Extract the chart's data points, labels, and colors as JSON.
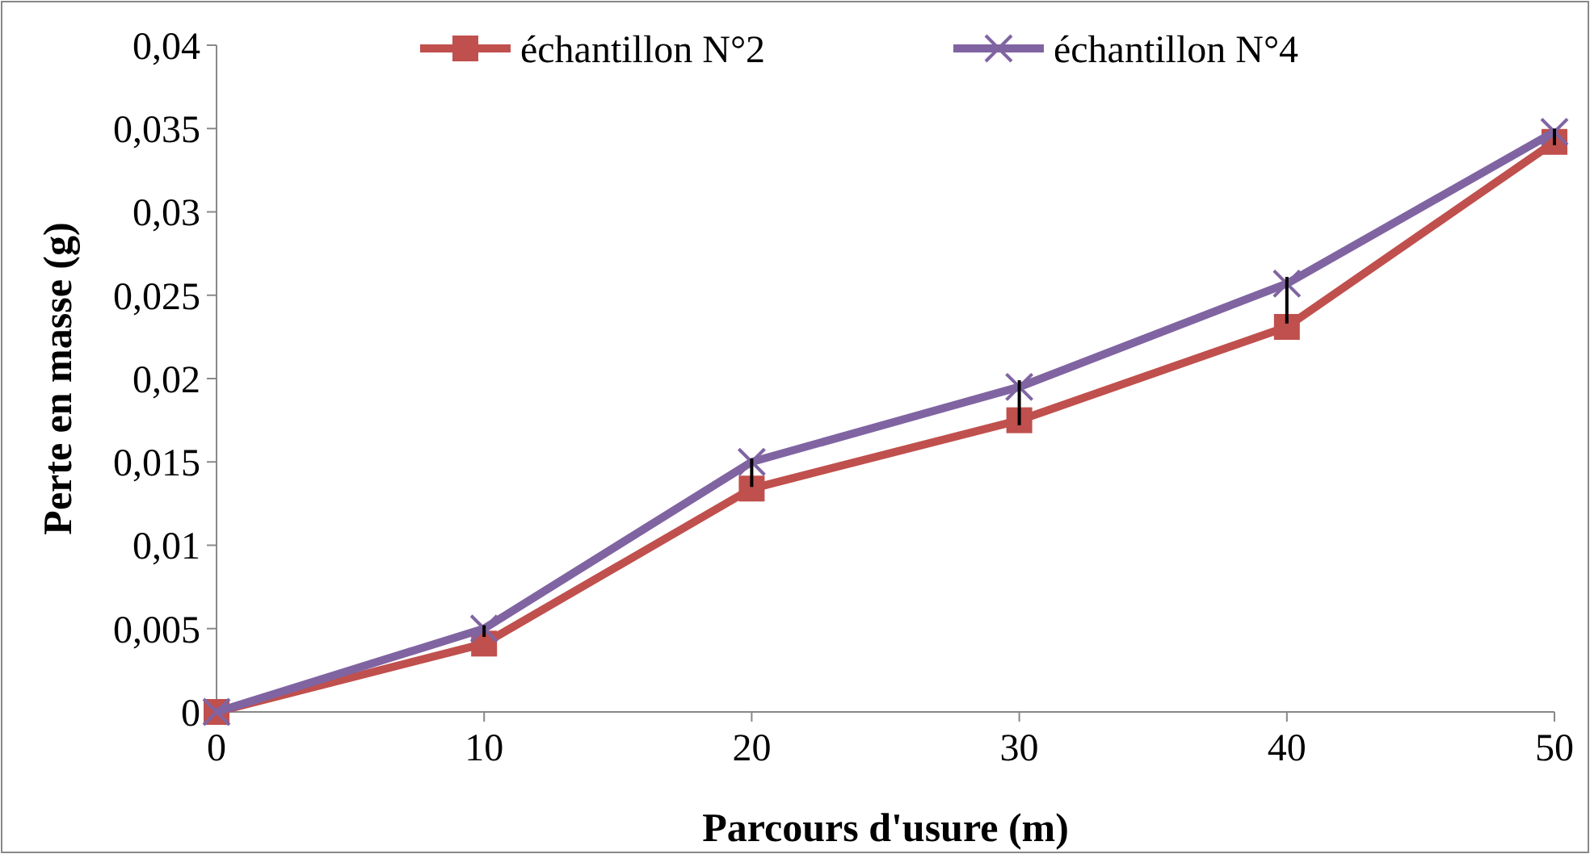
{
  "chart_data": {
    "type": "line",
    "xlabel": "Parcours d'usure (m)",
    "ylabel": "Perte en masse (g)",
    "x": [
      0,
      10,
      20,
      30,
      40,
      50
    ],
    "series": [
      {
        "name": "échantillon N°2",
        "color": "#c0504d",
        "marker": "square",
        "values": [
          0,
          0.0041,
          0.0134,
          0.0175,
          0.0231,
          0.0342
        ]
      },
      {
        "name": "échantillon N°4",
        "color": "#8064a2",
        "marker": "cross",
        "values": [
          0,
          0.005,
          0.015,
          0.0195,
          0.0257,
          0.0348
        ],
        "errors": [
          null,
          [
            0.0045,
            0.0052
          ],
          [
            0.0135,
            0.0152
          ],
          [
            0.0172,
            0.0199
          ],
          [
            0.0233,
            0.0261
          ],
          [
            0.034,
            0.035
          ]
        ]
      }
    ],
    "xlim": [
      0,
      50
    ],
    "xticks": [
      0,
      10,
      20,
      30,
      40,
      50
    ],
    "ylim": [
      0,
      0.04
    ],
    "yticks": [
      0,
      {
        "value": 0.005,
        "label": "0,005"
      },
      {
        "value": 0.01,
        "label": "0,01"
      },
      {
        "value": 0.015,
        "label": "0,015"
      },
      {
        "value": 0.02,
        "label": "0,02"
      },
      {
        "value": 0.025,
        "label": "0,025"
      },
      {
        "value": 0.03,
        "label": "0,03"
      },
      {
        "value": 0.035,
        "label": "0,035"
      },
      {
        "value": 0.04,
        "label": "0,04"
      }
    ],
    "grid": false,
    "legend": "top",
    "line_style": "solid"
  }
}
